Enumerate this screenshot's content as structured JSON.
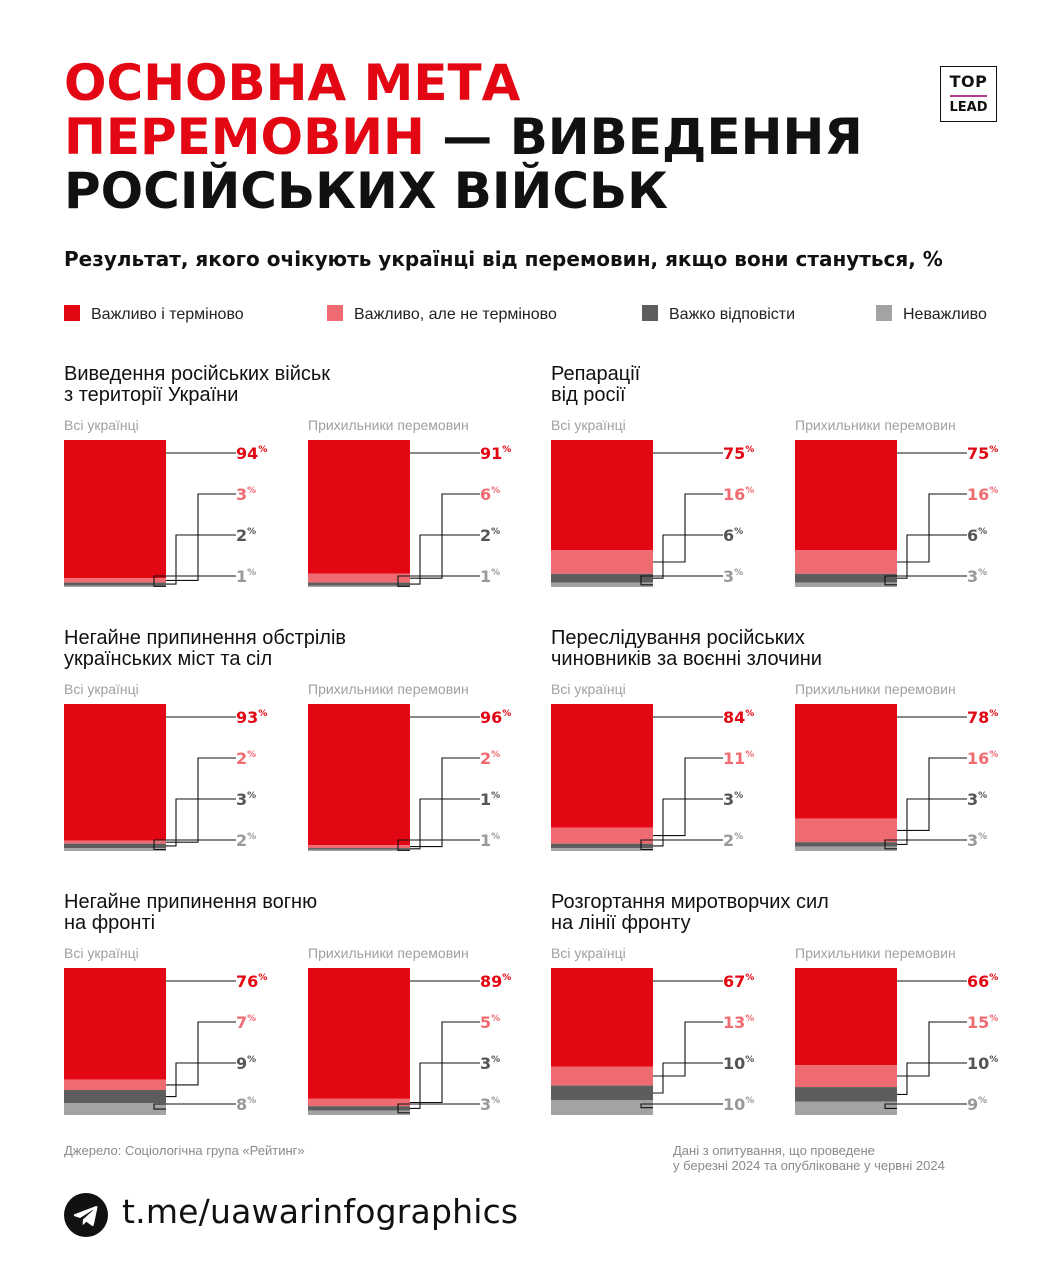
{
  "title": {
    "line1": "Основна мета",
    "line2_red": "перемовин",
    "line2_rest": " — виведення",
    "line3": "російських військ"
  },
  "logo": {
    "top": "TOP",
    "bottom": "LEAD"
  },
  "subtitle": "Результат, якого очікують українці від перемовин, якщо вони станутьcя, %",
  "colors": {
    "urgent": "#e30613",
    "important": "#ef6b72",
    "hard": "#5d5d5d",
    "unimportant": "#a3a3a3",
    "label_urgent": "#e30613",
    "label_important": "#ef6b72",
    "label_hard": "#555555",
    "label_unimportant": "#999999",
    "line": "#111111"
  },
  "legend": [
    {
      "label": "Важливо і терміново",
      "key": "urgent"
    },
    {
      "label": "Важливо, але не терміново",
      "key": "important"
    },
    {
      "label": "Важко відповісти",
      "key": "hard"
    },
    {
      "label": "Неважливо",
      "key": "unimportant"
    }
  ],
  "chart_data": {
    "type": "stacked-bar",
    "unit": "%",
    "series": [
      "Важливо і терміново",
      "Важливо, але не терміново",
      "Важко відповісти",
      "Неважливо"
    ],
    "groups": [
      "Всі українці",
      "Прихильники перемовин"
    ],
    "blocks": [
      {
        "title": "Виведення російських військ\nз території України",
        "values": [
          [
            94,
            3,
            2,
            1
          ],
          [
            91,
            6,
            2,
            1
          ]
        ]
      },
      {
        "title": "Репарації\nвід росії",
        "values": [
          [
            75,
            16,
            6,
            3
          ],
          [
            75,
            16,
            6,
            3
          ]
        ]
      },
      {
        "title": "Негайне припинення обстрілів\nукраїнських міст та сіл",
        "values": [
          [
            93,
            2,
            3,
            2
          ],
          [
            96,
            2,
            1,
            1
          ]
        ]
      },
      {
        "title": "Переслідування російських\nчиновників за воєнні злочини",
        "values": [
          [
            84,
            11,
            3,
            2
          ],
          [
            78,
            16,
            3,
            3
          ]
        ]
      },
      {
        "title": "Негайне припинення вогню\nна фронті",
        "values": [
          [
            76,
            7,
            9,
            8
          ],
          [
            89,
            5,
            3,
            3
          ]
        ]
      },
      {
        "title": "Розгортання миротворчих сил\nна лінії фронту",
        "values": [
          [
            67,
            13,
            10,
            10
          ],
          [
            66,
            15,
            10,
            9
          ]
        ]
      }
    ]
  },
  "footer": {
    "source": "Джерело: Соціологічна група «Рейтинг»",
    "note": "Дані з опитування, що проведене\nу березні 2024 та опубліковане у червні 2024",
    "link": "t.me/uawarinfographics"
  }
}
